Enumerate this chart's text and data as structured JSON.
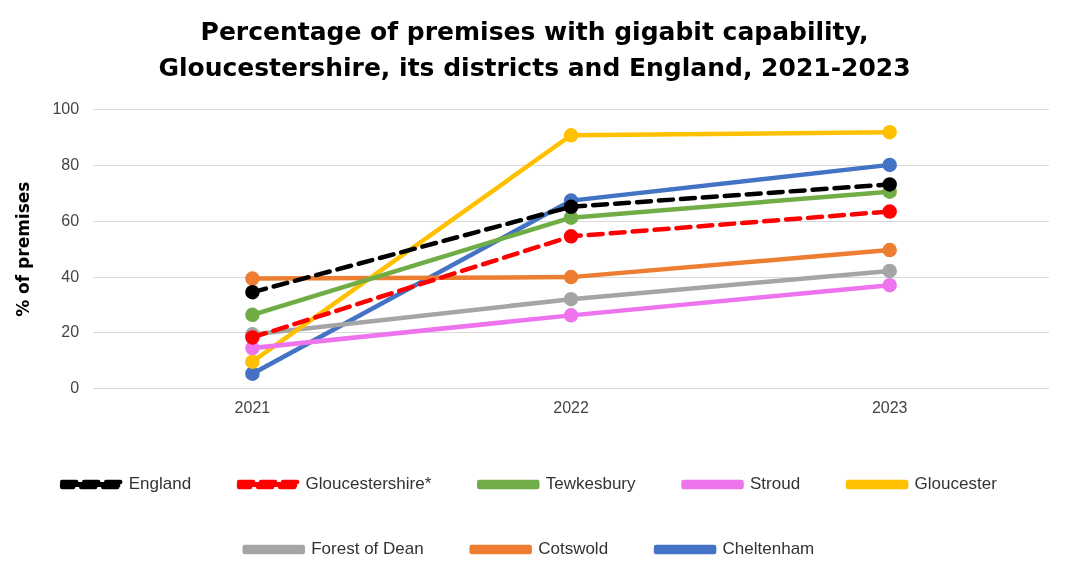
{
  "chart_data": {
    "type": "line",
    "title": "Percentage of premises with gigabit capability, Gloucestershire, its districts and England, 2021-2023",
    "ylabel": "% of premises",
    "categories": [
      "2021",
      "2022",
      "2023"
    ],
    "series": [
      {
        "name": "Cheltenham",
        "color": "#4472c4",
        "values": [
          5.4,
          67.4,
          80.2
        ]
      },
      {
        "name": "Cotswold",
        "color": "#ed7d31",
        "values": [
          39.5,
          40.0,
          49.7
        ]
      },
      {
        "name": "Forest of Dean",
        "color": "#a5a5a5",
        "values": [
          19.5,
          32.1,
          42.2
        ]
      },
      {
        "name": "Gloucester",
        "color": "#ffc000",
        "values": [
          9.7,
          90.8,
          91.9
        ]
      },
      {
        "name": "Stroud",
        "color": "#ee74ee",
        "values": [
          14.6,
          26.3,
          37.1
        ]
      },
      {
        "name": "Tewkesbury",
        "color": "#70ad47",
        "values": [
          26.5,
          61.3,
          70.6
        ]
      },
      {
        "name": "Gloucestershire*",
        "color": "#ff0000",
        "line_style": "dashed",
        "values": [
          18.4,
          54.6,
          63.5
        ]
      },
      {
        "name": "England",
        "color": "#000000",
        "line_style": "dashed",
        "values": [
          34.6,
          65.2,
          73.2
        ]
      }
    ],
    "ylim": [
      0,
      100
    ],
    "yticks": [
      0,
      20,
      40,
      60,
      80,
      100
    ],
    "grid": "y",
    "legend": "bottom",
    "marker": "circle",
    "line_style": "solid"
  }
}
